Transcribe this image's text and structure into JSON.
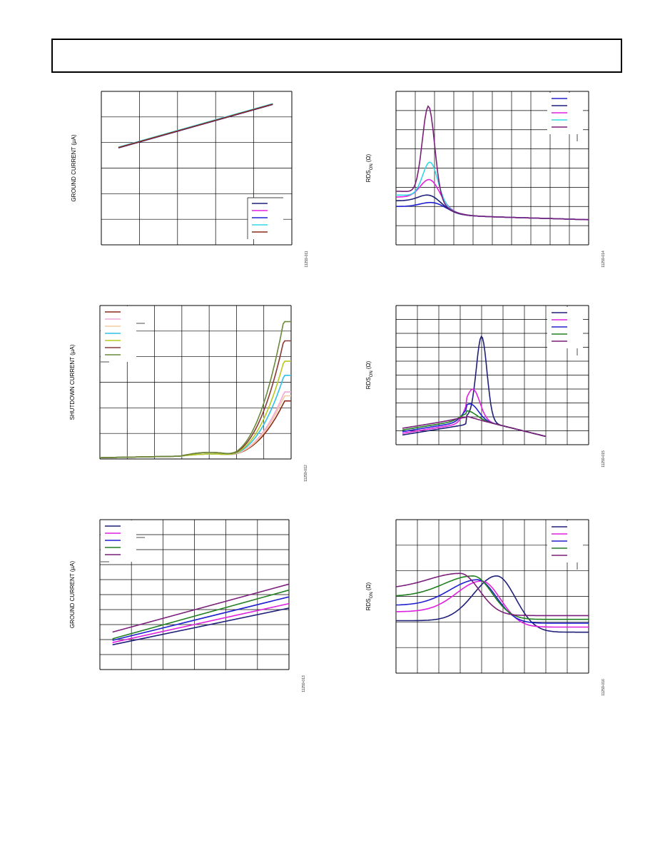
{
  "page": {
    "header_text": ""
  },
  "charts": [
    {
      "id": "c1",
      "type": "line",
      "ylabel": "GROUND CURRENT (µA)",
      "code": "11259-011",
      "xlim": [
        0,
        5
      ],
      "ylim": [
        0,
        6
      ],
      "grid": {
        "xdiv": 5,
        "ydiv": 6
      },
      "legend": {
        "placement": "bottom-right",
        "entries": 5,
        "frame": "partial-left-top"
      },
      "series": [
        {
          "color": "#1f1f7a",
          "x": [
            0.45,
            4.5
          ],
          "y": [
            3.8,
            5.5
          ]
        },
        {
          "color": "#e020e0",
          "x": [
            0.45,
            4.5
          ],
          "y": [
            3.81,
            5.51
          ]
        },
        {
          "color": "#2020d0",
          "x": [
            0.45,
            4.5
          ],
          "y": [
            3.79,
            5.49
          ]
        },
        {
          "color": "#30d8e8",
          "x": [
            0.45,
            4.5
          ],
          "y": [
            3.82,
            5.52
          ]
        },
        {
          "color": "#8b2a1a",
          "x": [
            0.45,
            4.5
          ],
          "y": [
            3.8,
            5.5
          ]
        }
      ]
    },
    {
      "id": "c2",
      "type": "line",
      "ylabel": "RDS_ON (Ω)",
      "code": "11259-014",
      "xlim": [
        0,
        10
      ],
      "ylim": [
        0,
        8
      ],
      "grid": {
        "xdiv": 10,
        "ydiv": 8
      },
      "legend": {
        "placement": "top-right",
        "entries": 5,
        "frame": "partial-left-bottom"
      },
      "series": [
        {
          "color": "#2020d0",
          "peak": [
            2.0,
            2.3
          ],
          "base": 2.0,
          "tail": 1.55,
          "width": 0.9
        },
        {
          "color": "#1f1f7a",
          "peak": [
            1.8,
            2.75
          ],
          "base": 2.3,
          "tail": 1.55,
          "width": 0.8
        },
        {
          "color": "#e020e0",
          "peak": [
            1.8,
            3.65
          ],
          "base": 2.5,
          "tail": 1.55,
          "width": 0.7
        },
        {
          "color": "#30d8e8",
          "peak": [
            1.8,
            4.65
          ],
          "base": 2.6,
          "tail": 1.55,
          "width": 0.55
        },
        {
          "color": "#7a1f7a",
          "peak": [
            1.7,
            7.8
          ],
          "base": 2.8,
          "tail": 1.55,
          "width": 0.45
        }
      ]
    },
    {
      "id": "c3",
      "type": "line",
      "ylabel": "SHUTDOWN CURRENT (µA)",
      "code": "11259-012",
      "xlim": [
        0,
        7
      ],
      "ylim": [
        0,
        6
      ],
      "grid": {
        "xdiv": 7,
        "ydiv": 6
      },
      "legend": {
        "placement": "top-left",
        "entries": 7,
        "frame": "partial-right-bottom"
      },
      "series": [
        {
          "color": "#8b2a1a",
          "end": 2.25
        },
        {
          "color": "#f0a8d8",
          "end": 2.6
        },
        {
          "color": "#f5c8a0",
          "end": 2.45
        },
        {
          "color": "#30c0e8",
          "end": 3.25
        },
        {
          "color": "#b8c820",
          "end": 3.8
        },
        {
          "color": "#8b3a3a",
          "end": 4.6
        },
        {
          "color": "#6a8a3a",
          "end": 5.35
        }
      ]
    },
    {
      "id": "c4",
      "type": "line",
      "ylabel": "RDS_ON (Ω)",
      "code": "11259-015",
      "xlim": [
        0,
        9
      ],
      "ylim": [
        0,
        10
      ],
      "grid": {
        "xdiv": 9,
        "ydiv": 10
      },
      "legend": {
        "placement": "top-right",
        "entries": 5,
        "frame": "partial-left-bottom"
      },
      "series": [
        {
          "color": "#1f1f7a",
          "peak": [
            4.0,
            8.05
          ],
          "width": 0.35
        },
        {
          "color": "#e020e0",
          "peak": [
            3.6,
            4.1
          ],
          "width": 0.45
        },
        {
          "color": "#2020d0",
          "peak": [
            3.5,
            3.0
          ],
          "width": 0.5
        },
        {
          "color": "#208020",
          "peak": [
            3.4,
            2.45
          ],
          "width": 0.55
        },
        {
          "color": "#7a1f7a",
          "peak": [
            3.1,
            2.05
          ],
          "width": 0.7
        }
      ]
    },
    {
      "id": "c5",
      "type": "line",
      "ylabel": "GROUND CURRENT (µA)",
      "code": "11259-013",
      "xlim": [
        0,
        6
      ],
      "ylim": [
        0,
        10
      ],
      "grid": {
        "xdiv": 6,
        "ydiv": 10
      },
      "legend": {
        "placement": "top-left",
        "entries": 5,
        "frame": "partial-right-bottom"
      },
      "series": [
        {
          "color": "#1f1f7a",
          "x": [
            0.4,
            6
          ],
          "y": [
            1.65,
            4.1
          ]
        },
        {
          "color": "#e020e0",
          "x": [
            0.4,
            6
          ],
          "y": [
            1.8,
            4.4
          ]
        },
        {
          "color": "#2020d0",
          "x": [
            0.4,
            6
          ],
          "y": [
            1.95,
            4.85
          ]
        },
        {
          "color": "#208020",
          "x": [
            0.4,
            6
          ],
          "y": [
            2.05,
            5.3
          ]
        },
        {
          "color": "#7a1f7a",
          "x": [
            0.4,
            6
          ],
          "y": [
            2.5,
            5.7
          ]
        }
      ]
    },
    {
      "id": "c6",
      "type": "line",
      "ylabel": "RDS_ON (Ω)",
      "code": "11259-016",
      "xlim": [
        0,
        9
      ],
      "ylim": [
        0,
        6
      ],
      "grid": {
        "xdiv": 9,
        "ydiv": 6
      },
      "legend": {
        "placement": "top-right",
        "entries": 5,
        "frame": "partial-left-bottom"
      },
      "series": [
        {
          "color": "#1f1f7a",
          "peak": [
            4.7,
            3.8
          ],
          "start": 2.05,
          "end": 1.6
        },
        {
          "color": "#e020e0",
          "peak": [
            4.0,
            3.6
          ],
          "start": 2.4,
          "end": 1.8
        },
        {
          "color": "#2020d0",
          "peak": [
            3.8,
            3.65
          ],
          "start": 2.65,
          "end": 1.95
        },
        {
          "color": "#208020",
          "peak": [
            3.6,
            3.8
          ],
          "start": 3.0,
          "end": 2.1
        },
        {
          "color": "#7a1f7a",
          "peak": [
            3.0,
            3.9
          ],
          "start": 3.3,
          "end": 2.25
        }
      ]
    }
  ]
}
